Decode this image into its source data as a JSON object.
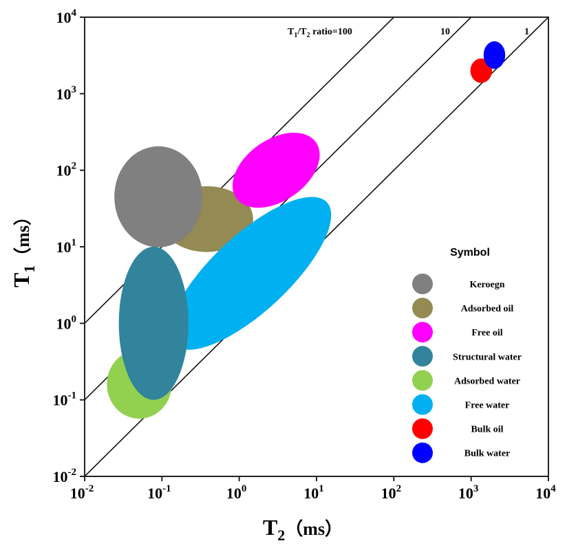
{
  "chart_data": {
    "type": "scatter",
    "title": "",
    "xlabel": {
      "main": "T",
      "sub": "2",
      "unit": "（ms）"
    },
    "ylabel": {
      "main": "T",
      "sub": "1",
      "unit": "（ms）"
    },
    "xscale": "log",
    "yscale": "log",
    "xlim": [
      0.01,
      10000
    ],
    "ylim": [
      0.01,
      10000
    ],
    "x_ticks": [
      {
        "base": "10",
        "exp": "-2"
      },
      {
        "base": "10",
        "exp": "-1"
      },
      {
        "base": "10",
        "exp": "0"
      },
      {
        "base": "10",
        "exp": "1"
      },
      {
        "base": "10",
        "exp": "2"
      },
      {
        "base": "10",
        "exp": "3"
      },
      {
        "base": "10",
        "exp": "4"
      }
    ],
    "y_ticks": [
      {
        "base": "10",
        "exp": "-2"
      },
      {
        "base": "10",
        "exp": "-1"
      },
      {
        "base": "10",
        "exp": "0"
      },
      {
        "base": "10",
        "exp": "1"
      },
      {
        "base": "10",
        "exp": "2"
      },
      {
        "base": "10",
        "exp": "3"
      },
      {
        "base": "10",
        "exp": "4"
      }
    ],
    "grid": false,
    "ratio_lines": [
      {
        "ratio": 100,
        "label_main": "T",
        "label_sub1": "1",
        "label_mid": "/T",
        "label_sub2": "2",
        "label_tail": " ratio=100"
      },
      {
        "ratio": 10,
        "label": "10"
      },
      {
        "ratio": 1,
        "label": "1"
      }
    ],
    "regions": [
      {
        "name": "Adsorbed oil",
        "color": "#948A54",
        "t2": 0.38,
        "t1": 23,
        "t2_halfwidth_decades": 0.6,
        "t1_halfwidth_decades": 0.43,
        "tilt_deg": 0
      },
      {
        "name": "Keroegn",
        "color": "#808080",
        "t2": 0.09,
        "t1": 45,
        "t2_halfwidth_decades": 0.57,
        "t1_halfwidth_decades": 0.66,
        "tilt_deg": 0
      },
      {
        "name": "Free oil",
        "color": "#FF00FF",
        "t2": 3.0,
        "t1": 100,
        "t2_halfwidth_decades": 0.63,
        "t1_halfwidth_decades": 0.4,
        "tilt_deg": 35
      },
      {
        "name": "Free water",
        "color": "#00B0F0",
        "t2": 1.4,
        "t1": 4.5,
        "t2_halfwidth_decades": 1.35,
        "t1_halfwidth_decades": 0.5,
        "tilt_deg": 43
      },
      {
        "name": "Adsorbed water",
        "color": "#92D050",
        "t2": 0.051,
        "t1": 0.16,
        "t2_halfwidth_decades": 0.42,
        "t1_halfwidth_decades": 0.45,
        "tilt_deg": 0
      },
      {
        "name": "Structural water",
        "color": "#31849B",
        "t2": 0.078,
        "t1": 1.0,
        "t2_halfwidth_decades": 0.45,
        "t1_halfwidth_decades": 1.0,
        "tilt_deg": 0
      },
      {
        "name": "Bulk oil",
        "color": "#FF0000",
        "t2": 1350,
        "t1": 2000,
        "t2_halfwidth_decades": 0.14,
        "t1_halfwidth_decades": 0.16,
        "tilt_deg": 0
      },
      {
        "name": "Bulk water",
        "color": "#0000FF",
        "t2": 2000,
        "t1": 3200,
        "t2_halfwidth_decades": 0.14,
        "t1_halfwidth_decades": 0.18,
        "tilt_deg": 0
      }
    ],
    "legend": {
      "title": "Symbol",
      "placement": "right",
      "items": [
        {
          "label": "Keroegn",
          "color": "#808080"
        },
        {
          "label": "Adsorbed oil",
          "color": "#948A54"
        },
        {
          "label": "Free oil",
          "color": "#FF00FF"
        },
        {
          "label": "Structural water",
          "color": "#31849B"
        },
        {
          "label": "Adsorbed water",
          "color": "#92D050"
        },
        {
          "label": "Free water",
          "color": "#00B0F0"
        },
        {
          "label": "Bulk oil",
          "color": "#FF0000"
        },
        {
          "label": "Bulk water",
          "color": "#0000FF"
        }
      ]
    }
  }
}
